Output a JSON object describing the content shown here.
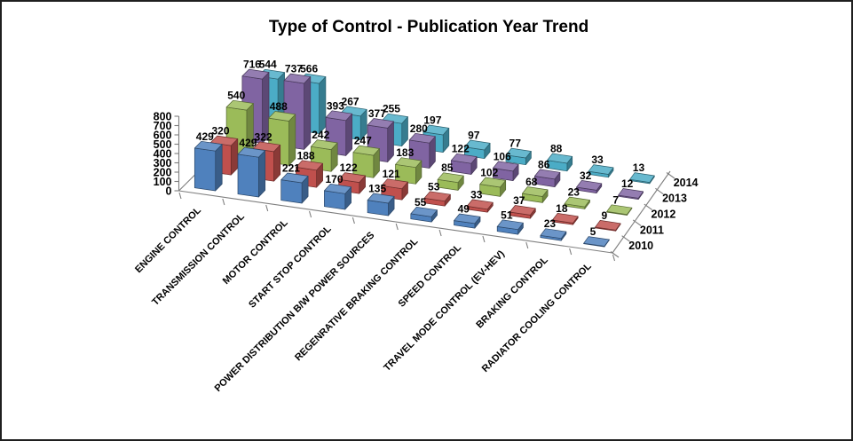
{
  "chart_data": {
    "type": "bar",
    "projection": "3d-column",
    "title": "Type of Control - Publication Year Trend",
    "categories": [
      "ENGINE CONTROL",
      "TRANSMISSION CONTROL",
      "MOTOR CONTROL",
      "START STOP CONTROL",
      "POWER DISTRIBUTION B/W POWER SOURCES",
      "REGENRATIVE BRAKING CONTROL",
      "SPEED CONTROL",
      "TRAVEL MODE CONTROL (EV-HEV)",
      "BRAKING CONTROL",
      "RADIATOR COOLING CONTROL"
    ],
    "series": [
      {
        "name": "2010",
        "color": "#4F81BD",
        "values": [
          429,
          429,
          221,
          170,
          135,
          55,
          49,
          51,
          23,
          5
        ]
      },
      {
        "name": "2011",
        "color": "#C0504D",
        "values": [
          320,
          322,
          188,
          122,
          121,
          53,
          33,
          37,
          18,
          9
        ]
      },
      {
        "name": "2012",
        "color": "#9BBB59",
        "values": [
          540,
          488,
          242,
          247,
          183,
          85,
          102,
          68,
          23,
          7
        ]
      },
      {
        "name": "2013",
        "color": "#8064A2",
        "values": [
          716,
          737,
          393,
          377,
          280,
          122,
          106,
          86,
          32,
          12
        ]
      },
      {
        "name": "2014",
        "color": "#4BACC6",
        "values": [
          544,
          566,
          267,
          255,
          197,
          97,
          77,
          88,
          33,
          13
        ]
      }
    ],
    "value_axis": {
      "min": 0,
      "max": 800,
      "step": 100,
      "tick_labels": [
        "0",
        "100",
        "200",
        "300",
        "400",
        "500",
        "600",
        "700",
        "800"
      ]
    },
    "depth_axis_labels": [
      "2010",
      "2011",
      "2012",
      "2013",
      "2014"
    ],
    "data_labels_shown": true,
    "legend": "none",
    "axis_line_color": "#7f7f7f",
    "background_color": "#ffffff",
    "border_color": "#1f1f1f"
  }
}
